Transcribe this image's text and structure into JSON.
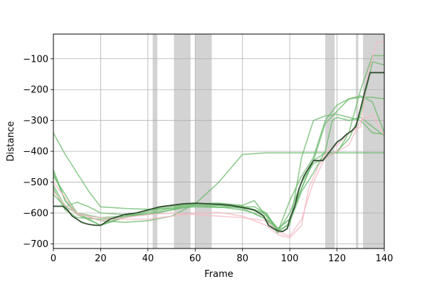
{
  "chart_data": {
    "type": "line",
    "title": "",
    "xlabel": "Frame",
    "ylabel": "Distance",
    "xlim": [
      0,
      140
    ],
    "ylim": [
      -715,
      -20
    ],
    "xticks": [
      0,
      20,
      40,
      60,
      80,
      100,
      120,
      140
    ],
    "yticks": [
      -700,
      -600,
      -500,
      -400,
      -300,
      -200,
      -100
    ],
    "grid": true,
    "shaded_spans": [
      [
        42,
        44
      ],
      [
        51,
        58
      ],
      [
        60,
        67
      ],
      [
        115,
        119
      ],
      [
        128,
        129
      ],
      [
        131,
        140
      ]
    ],
    "colors": {
      "green": "#6ab96a",
      "pink": "#f5b8c4",
      "highlight": "#3b3b3b",
      "highlight_overlay": "#1e7a1e",
      "shade": "#d3d3d3"
    },
    "series": [
      {
        "style": "green",
        "x": [
          0,
          5,
          10,
          15,
          20,
          30,
          40,
          50,
          60,
          70,
          80,
          85,
          90,
          95,
          100,
          105,
          110,
          115,
          120,
          125,
          130,
          135,
          140
        ],
        "y": [
          -340,
          -410,
          -470,
          -530,
          -580,
          -585,
          -588,
          -585,
          -580,
          -582,
          -580,
          -580,
          -600,
          -655,
          -640,
          -420,
          -300,
          -285,
          -280,
          -290,
          -300,
          -340,
          -345
        ]
      },
      {
        "style": "green",
        "x": [
          0,
          5,
          10,
          20,
          30,
          40,
          50,
          55,
          60,
          70,
          80,
          90,
          95,
          100,
          105,
          110,
          120,
          130,
          140
        ],
        "y": [
          -460,
          -560,
          -600,
          -625,
          -630,
          -625,
          -610,
          -590,
          -570,
          -500,
          -410,
          -405,
          -405,
          -405,
          -405,
          -405,
          -405,
          -405,
          -405
        ]
      },
      {
        "style": "green",
        "x": [
          0,
          5,
          10,
          20,
          30,
          40,
          50,
          60,
          70,
          80,
          85,
          90,
          95,
          100,
          105,
          110,
          115,
          120,
          125,
          130,
          135,
          140
        ],
        "y": [
          -520,
          -590,
          -615,
          -620,
          -615,
          -600,
          -585,
          -570,
          -568,
          -575,
          -560,
          -610,
          -660,
          -560,
          -480,
          -420,
          -300,
          -250,
          -230,
          -225,
          -225,
          -230
        ]
      },
      {
        "style": "green",
        "x": [
          0,
          5,
          10,
          15,
          20,
          30,
          40,
          50,
          60,
          70,
          80,
          85,
          90,
          95,
          100,
          105,
          110,
          115,
          120,
          125,
          130,
          135,
          140
        ],
        "y": [
          -540,
          -580,
          -565,
          -580,
          -600,
          -605,
          -605,
          -590,
          -575,
          -580,
          -590,
          -600,
          -620,
          -650,
          -620,
          -520,
          -430,
          -405,
          -405,
          -340,
          -200,
          -90,
          -90
        ]
      },
      {
        "style": "green",
        "x": [
          0,
          5,
          10,
          20,
          30,
          40,
          50,
          60,
          70,
          80,
          90,
          95,
          100,
          105,
          110,
          115,
          118,
          120,
          125,
          130,
          135,
          140
        ],
        "y": [
          -510,
          -580,
          -600,
          -615,
          -610,
          -605,
          -590,
          -575,
          -575,
          -585,
          -620,
          -665,
          -630,
          -530,
          -470,
          -400,
          -300,
          -290,
          -300,
          -290,
          -320,
          -350
        ]
      },
      {
        "style": "green",
        "x": [
          0,
          5,
          10,
          20,
          30,
          40,
          50,
          60,
          70,
          80,
          90,
          95,
          100,
          105,
          110,
          115,
          120,
          125,
          130,
          135,
          140
        ],
        "y": [
          -470,
          -560,
          -605,
          -640,
          -610,
          -590,
          -575,
          -570,
          -572,
          -580,
          -605,
          -650,
          -620,
          -520,
          -430,
          -310,
          -270,
          -230,
          -220,
          -240,
          -340
        ]
      },
      {
        "style": "green",
        "x": [
          0,
          10,
          20,
          30,
          40,
          50,
          60,
          70,
          80,
          90,
          95,
          100,
          105,
          110,
          115,
          120,
          125,
          130,
          135,
          140
        ],
        "y": [
          -480,
          -600,
          -640,
          -615,
          -595,
          -580,
          -570,
          -570,
          -578,
          -600,
          -660,
          -600,
          -500,
          -440,
          -420,
          -400,
          -360,
          -280,
          -110,
          -120
        ]
      },
      {
        "style": "pink",
        "x": [
          0,
          5,
          10,
          20,
          30,
          40,
          50,
          60,
          70,
          80,
          90,
          95,
          100,
          105,
          108,
          112,
          116,
          120,
          125,
          130,
          133,
          137,
          140
        ],
        "y": [
          -500,
          -550,
          -605,
          -615,
          -620,
          -620,
          -610,
          -600,
          -598,
          -610,
          -640,
          -670,
          -680,
          -640,
          -520,
          -450,
          -400,
          -380,
          -340,
          -320,
          -150,
          -45,
          -45
        ]
      },
      {
        "style": "pink",
        "x": [
          0,
          5,
          10,
          20,
          30,
          40,
          50,
          60,
          70,
          80,
          90,
          95,
          100,
          105,
          110,
          115,
          120,
          125,
          130,
          135,
          140
        ],
        "y": [
          -530,
          -575,
          -600,
          -625,
          -615,
          -605,
          -600,
          -605,
          -610,
          -615,
          -625,
          -660,
          -675,
          -620,
          -500,
          -420,
          -400,
          -380,
          -300,
          -280,
          -350
        ]
      },
      {
        "style": "highlight",
        "x": [
          0,
          4,
          6,
          8,
          10,
          12,
          14,
          16,
          18,
          20,
          22,
          24,
          26,
          28,
          30,
          35,
          40,
          45,
          50,
          55,
          60,
          65,
          70,
          75,
          80,
          85,
          87,
          89,
          91,
          93,
          95,
          97,
          99,
          100,
          102,
          104,
          106,
          108,
          110,
          112,
          114,
          116,
          118,
          120,
          122,
          124,
          126,
          128,
          130,
          132,
          134,
          136,
          138,
          140
        ],
        "y": [
          -578,
          -578,
          -590,
          -610,
          -620,
          -630,
          -635,
          -638,
          -640,
          -640,
          -630,
          -620,
          -615,
          -610,
          -605,
          -600,
          -590,
          -580,
          -575,
          -570,
          -568,
          -570,
          -572,
          -575,
          -582,
          -590,
          -600,
          -610,
          -640,
          -650,
          -658,
          -660,
          -650,
          -620,
          -580,
          -520,
          -480,
          -455,
          -430,
          -430,
          -430,
          -410,
          -390,
          -370,
          -360,
          -345,
          -335,
          -320,
          -260,
          -200,
          -145,
          -145,
          -145,
          -145
        ]
      }
    ]
  }
}
